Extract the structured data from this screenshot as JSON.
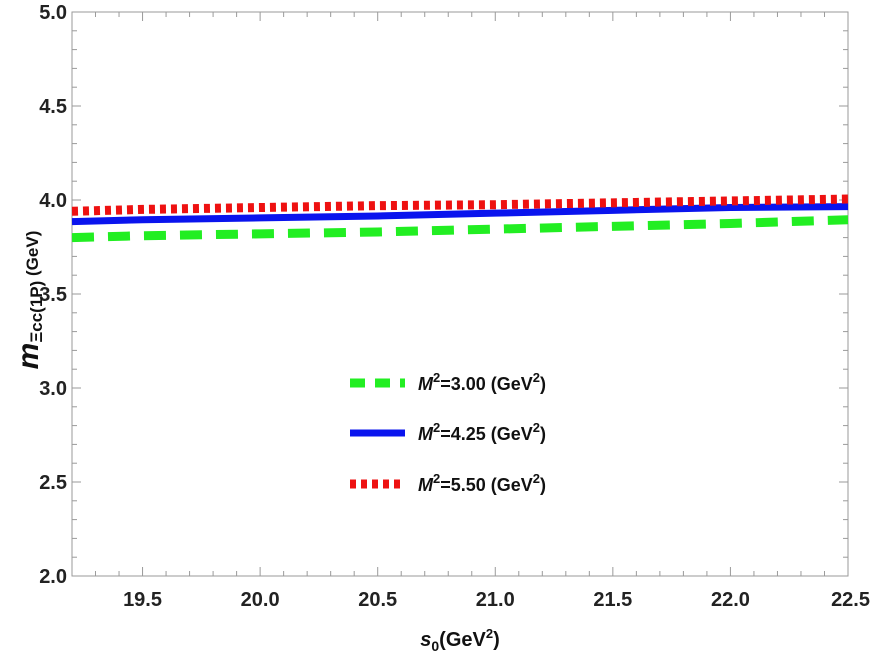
{
  "chart_data": {
    "type": "line",
    "xlabel": {
      "main": "s",
      "sub": "0",
      "after": "(GeV",
      "sup": "2",
      "end": ")"
    },
    "ylabel": {
      "main": "m",
      "sub": "Ξcc(1P)",
      "after": " (GeV)"
    },
    "xlim": [
      19.2,
      22.5
    ],
    "ylim": [
      2.0,
      5.0
    ],
    "xticks": [
      "19.5",
      "20.0",
      "20.5",
      "21.0",
      "21.5",
      "22.0",
      "22.5"
    ],
    "yticks": [
      "2.0",
      "2.5",
      "3.0",
      "3.5",
      "4.0",
      "4.5",
      "5.0"
    ],
    "grid": false,
    "legend_position": "center-left",
    "series": [
      {
        "name": "M²=3.00 (GeV²)",
        "label": {
          "pre": "M",
          "sup": "2",
          "mid": "=3.00 (GeV",
          "sup2": "2",
          "end": ")"
        },
        "color": "#22ee22",
        "style": "dashed",
        "x": [
          19.2,
          19.5,
          20.0,
          20.5,
          21.0,
          21.5,
          22.0,
          22.5
        ],
        "y": [
          3.8,
          3.81,
          3.82,
          3.83,
          3.845,
          3.86,
          3.875,
          3.895
        ]
      },
      {
        "name": "M²=4.25 (GeV²)",
        "label": {
          "pre": "M",
          "sup": "2",
          "mid": "=4.25 (GeV",
          "sup2": "2",
          "end": ")"
        },
        "color": "#0a14ee",
        "style": "solid",
        "x": [
          19.2,
          19.5,
          20.0,
          20.5,
          21.0,
          21.5,
          22.0,
          22.5
        ],
        "y": [
          3.885,
          3.895,
          3.905,
          3.915,
          3.93,
          3.945,
          3.96,
          3.965
        ]
      },
      {
        "name": "M²=5.50 (GeV²)",
        "label": {
          "pre": "M",
          "sup": "2",
          "mid": "=5.50 (GeV",
          "sup2": "2",
          "end": ")"
        },
        "color": "#ee1111",
        "style": "dotted",
        "x": [
          19.2,
          19.5,
          20.0,
          20.5,
          21.0,
          21.5,
          22.0,
          22.5
        ],
        "y": [
          3.94,
          3.95,
          3.96,
          3.97,
          3.975,
          3.985,
          3.995,
          4.005
        ]
      }
    ]
  }
}
